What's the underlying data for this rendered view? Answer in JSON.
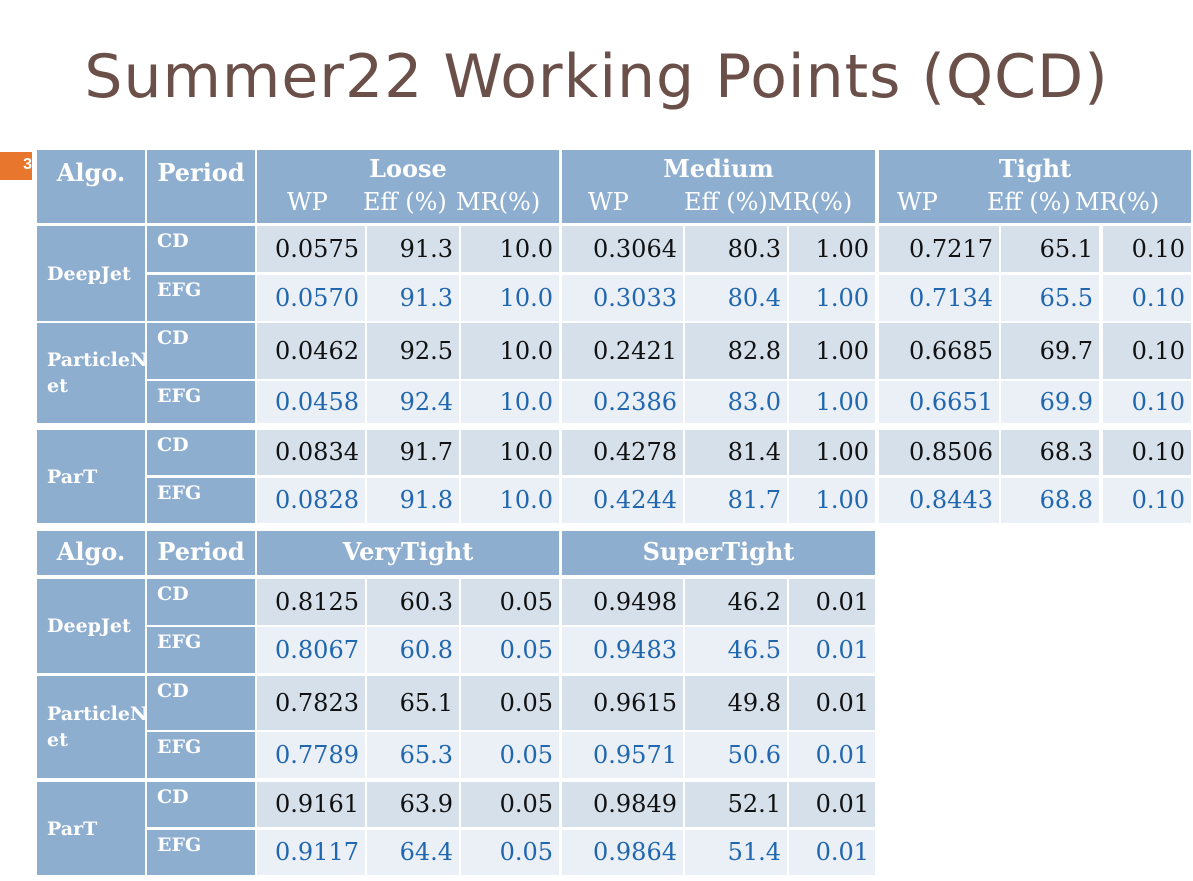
{
  "title": "Summer22 Working Points (QCD)",
  "slide_number": "3",
  "table1": {
    "algo_header": "Algo.",
    "period_header": "Period",
    "groups": [
      "Loose",
      "Medium",
      "Tight"
    ],
    "sub_headers": [
      "WP",
      "Eff (%)",
      "MR(%)"
    ],
    "rows": [
      {
        "algo": "DeepJet",
        "period": "CD",
        "vals": [
          "0.0575",
          "91.3",
          "10.0",
          "0.3064",
          "80.3",
          "1.00",
          "0.7217",
          "65.1",
          "0.10"
        ]
      },
      {
        "algo": "",
        "period": "EFG",
        "vals": [
          "0.0570",
          "91.3",
          "10.0",
          "0.3033",
          "80.4",
          "1.00",
          "0.7134",
          "65.5",
          "0.10"
        ]
      },
      {
        "algo": "ParticleN\net",
        "period": "CD",
        "vals": [
          "0.0462",
          "92.5",
          "10.0",
          "0.2421",
          "82.8",
          "1.00",
          "0.6685",
          "69.7",
          "0.10"
        ]
      },
      {
        "algo": "",
        "period": "EFG",
        "vals": [
          "0.0458",
          "92.4",
          "10.0",
          "0.2386",
          "83.0",
          "1.00",
          "0.6651",
          "69.9",
          "0.10"
        ]
      },
      {
        "algo": "ParT",
        "period": "CD",
        "vals": [
          "0.0834",
          "91.7",
          "10.0",
          "0.4278",
          "81.4",
          "1.00",
          "0.8506",
          "68.3",
          "0.10"
        ]
      },
      {
        "algo": "",
        "period": "EFG",
        "vals": [
          "0.0828",
          "91.8",
          "10.0",
          "0.4244",
          "81.7",
          "1.00",
          "0.8443",
          "68.8",
          "0.10"
        ]
      }
    ]
  },
  "table2": {
    "algo_header": "Algo.",
    "period_header": "Period",
    "groups": [
      "VeryTight",
      "SuperTight"
    ],
    "rows": [
      {
        "algo": "DeepJet",
        "period": "CD",
        "vals": [
          "0.8125",
          "60.3",
          "0.05",
          "0.9498",
          "46.2",
          "0.01"
        ]
      },
      {
        "algo": "",
        "period": "EFG",
        "vals": [
          "0.8067",
          "60.8",
          "0.05",
          "0.9483",
          "46.5",
          "0.01"
        ]
      },
      {
        "algo": "ParticleN\net",
        "period": "CD",
        "vals": [
          "0.7823",
          "65.1",
          "0.05",
          "0.9615",
          "49.8",
          "0.01"
        ]
      },
      {
        "algo": "",
        "period": "EFG",
        "vals": [
          "0.7789",
          "65.3",
          "0.05",
          "0.9571",
          "50.6",
          "0.01"
        ]
      },
      {
        "algo": "ParT",
        "period": "CD",
        "vals": [
          "0.9161",
          "63.9",
          "0.05",
          "0.9849",
          "52.1",
          "0.01"
        ]
      },
      {
        "algo": "",
        "period": "EFG",
        "vals": [
          "0.9117",
          "64.4",
          "0.05",
          "0.9864",
          "51.4",
          "0.01"
        ]
      }
    ]
  }
}
